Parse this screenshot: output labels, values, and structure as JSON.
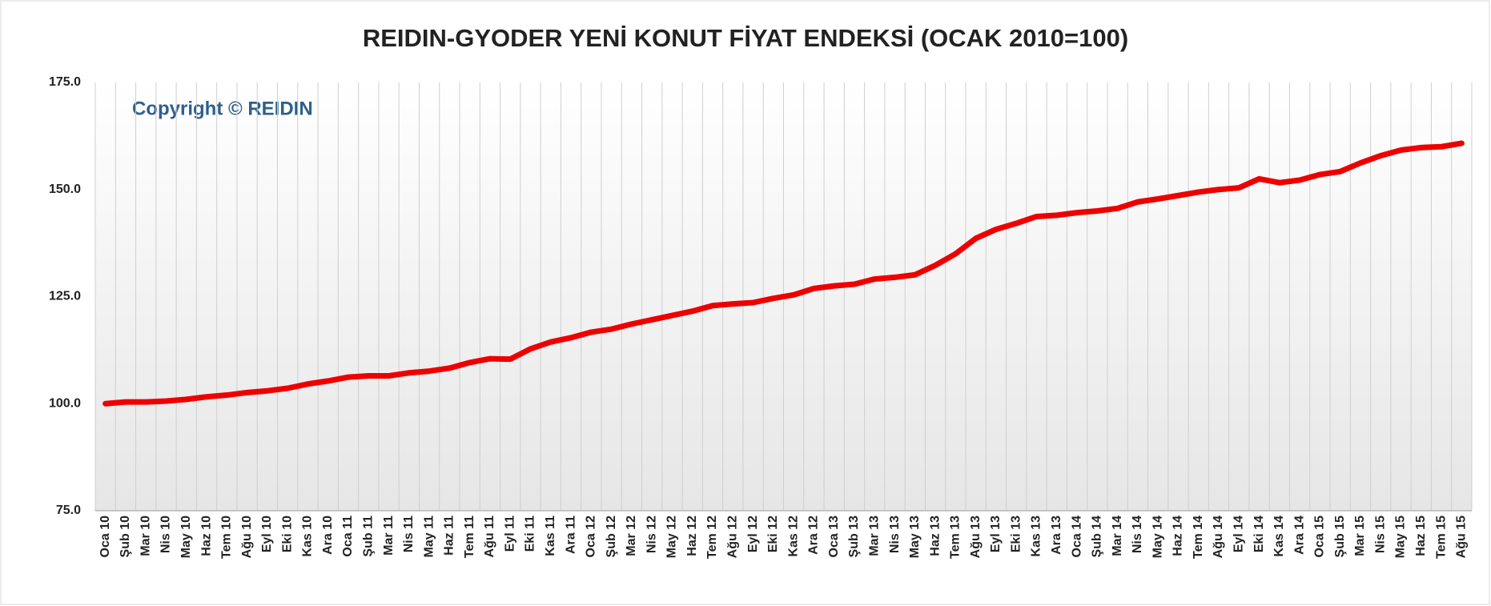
{
  "chart_data": {
    "type": "line",
    "title": "REIDIN-GYODER  YENİ  KONUT  FİYAT  ENDEKSİ  (OCAK 2010=100)",
    "annotation": "Copyright © REIDIN",
    "categories": [
      "Oca 10",
      "Şub 10",
      "Mar 10",
      "Nis 10",
      "May 10",
      "Haz 10",
      "Tem 10",
      "Ağu 10",
      "Eyl 10",
      "Eki 10",
      "Kas 10",
      "Ara 10",
      "Oca 11",
      "Şub 11",
      "Mar 11",
      "Nis 11",
      "May 11",
      "Haz 11",
      "Tem 11",
      "Ağu 11",
      "Eyl 11",
      "Eki 11",
      "Kas 11",
      "Ara 11",
      "Oca 12",
      "Şub 12",
      "Mar 12",
      "Nis 12",
      "May 12",
      "Haz 12",
      "Tem 12",
      "Ağu 12",
      "Eyl 12",
      "Eki 12",
      "Kas 12",
      "Ara 12",
      "Oca 13",
      "Şub 13",
      "Mar 13",
      "Nis 13",
      "May 13",
      "Haz 13",
      "Tem 13",
      "Ağu 13",
      "Eyl 13",
      "Eki 13",
      "Kas 13",
      "Ara 13",
      "Oca 14",
      "Şub 14",
      "Mar 14",
      "Nis 14",
      "May 14",
      "Haz 14",
      "Tem 14",
      "Ağu 14",
      "Eyl 14",
      "Eki 14",
      "Kas 14",
      "Ara 14",
      "Oca 15",
      "Şub 15",
      "Mar 15",
      "Nis 15",
      "May 15",
      "Haz 15",
      "Tem 15",
      "Ağu 15"
    ],
    "values": [
      100.0,
      100.4,
      100.4,
      100.6,
      101.0,
      101.6,
      102.0,
      102.6,
      103.0,
      103.6,
      104.6,
      105.3,
      106.2,
      106.5,
      106.5,
      107.2,
      107.6,
      108.3,
      109.6,
      110.5,
      110.4,
      112.8,
      114.4,
      115.4,
      116.7,
      117.4,
      118.6,
      119.6,
      120.6,
      121.6,
      122.9,
      123.3,
      123.6,
      124.6,
      125.4,
      126.9,
      127.5,
      127.9,
      129.1,
      129.5,
      130.1,
      132.3,
      135.0,
      138.6,
      140.7,
      142.1,
      143.7,
      144.0,
      144.6,
      145.0,
      145.6,
      147.1,
      147.8,
      148.6,
      149.4,
      150.0,
      150.4,
      152.5,
      151.6,
      152.2,
      153.5,
      154.2,
      156.2,
      157.9,
      159.2,
      159.8,
      160.0,
      160.8
    ],
    "color": "#ee0000",
    "ylim": [
      75,
      175
    ],
    "yticks": [
      {
        "value": 75,
        "label": "75.0"
      },
      {
        "value": 100,
        "label": "100.0"
      },
      {
        "value": 125,
        "label": "125.0"
      },
      {
        "value": 150,
        "label": "150.0"
      },
      {
        "value": 175,
        "label": "175.0"
      }
    ],
    "grid": false
  }
}
